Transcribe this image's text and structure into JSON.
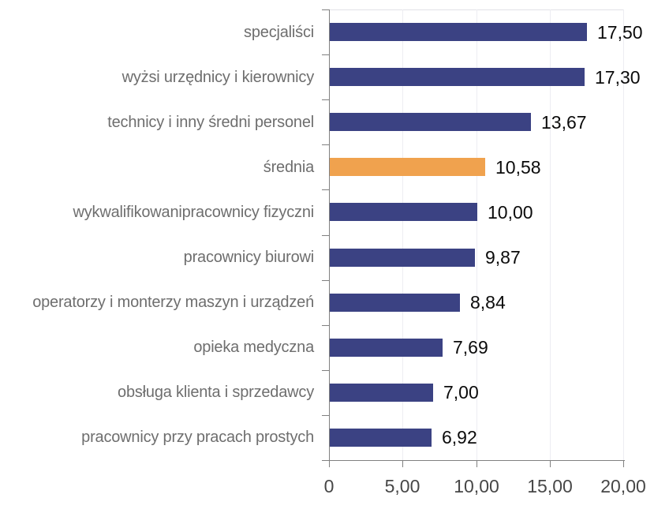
{
  "chart_data": {
    "type": "bar",
    "orientation": "horizontal",
    "title": "",
    "xlabel": "",
    "ylabel": "",
    "xlim": [
      0,
      20
    ],
    "grid": "vertical-light",
    "legend": "none",
    "x_ticks": [
      {
        "value": 0,
        "label": "0"
      },
      {
        "value": 5,
        "label": "5,00"
      },
      {
        "value": 10,
        "label": "10,00"
      },
      {
        "value": 15,
        "label": "15,00"
      },
      {
        "value": 20,
        "label": "20,00"
      }
    ],
    "bars": [
      {
        "category": "specjaliści",
        "value": 17.5,
        "label": "17,50",
        "highlight": false
      },
      {
        "category": "wyżsi urzędnicy i kierownicy",
        "value": 17.3,
        "label": "17,30",
        "highlight": false
      },
      {
        "category": "technicy i inny średni personel",
        "value": 13.67,
        "label": "13,67",
        "highlight": false
      },
      {
        "category": "średnia",
        "value": 10.58,
        "label": "10,58",
        "highlight": true
      },
      {
        "category": "wykwalifikowanipracownicy fizyczni",
        "value": 10.0,
        "label": "10,00",
        "highlight": false
      },
      {
        "category": "pracownicy biurowi",
        "value": 9.87,
        "label": "9,87",
        "highlight": false
      },
      {
        "category": "operatorzy i monterzy maszyn i urządzeń",
        "value": 8.84,
        "label": "8,84",
        "highlight": false
      },
      {
        "category": "opieka medyczna",
        "value": 7.69,
        "label": "7,69",
        "highlight": false
      },
      {
        "category": "obsługa klienta i sprzedawcy",
        "value": 7.0,
        "label": "7,00",
        "highlight": false
      },
      {
        "category": "pracownicy przy pracach prostych",
        "value": 6.92,
        "label": "6,92",
        "highlight": false
      }
    ],
    "colors": {
      "bar": "#3B4283",
      "highlight_bar": "#F0A24E",
      "axis": "#808080",
      "gridline": "#EDEDF2",
      "category_label": "#6E6E6E",
      "value_label": "#0B0B0B",
      "tick_label": "#474747",
      "background": "#FFFFFF"
    }
  }
}
